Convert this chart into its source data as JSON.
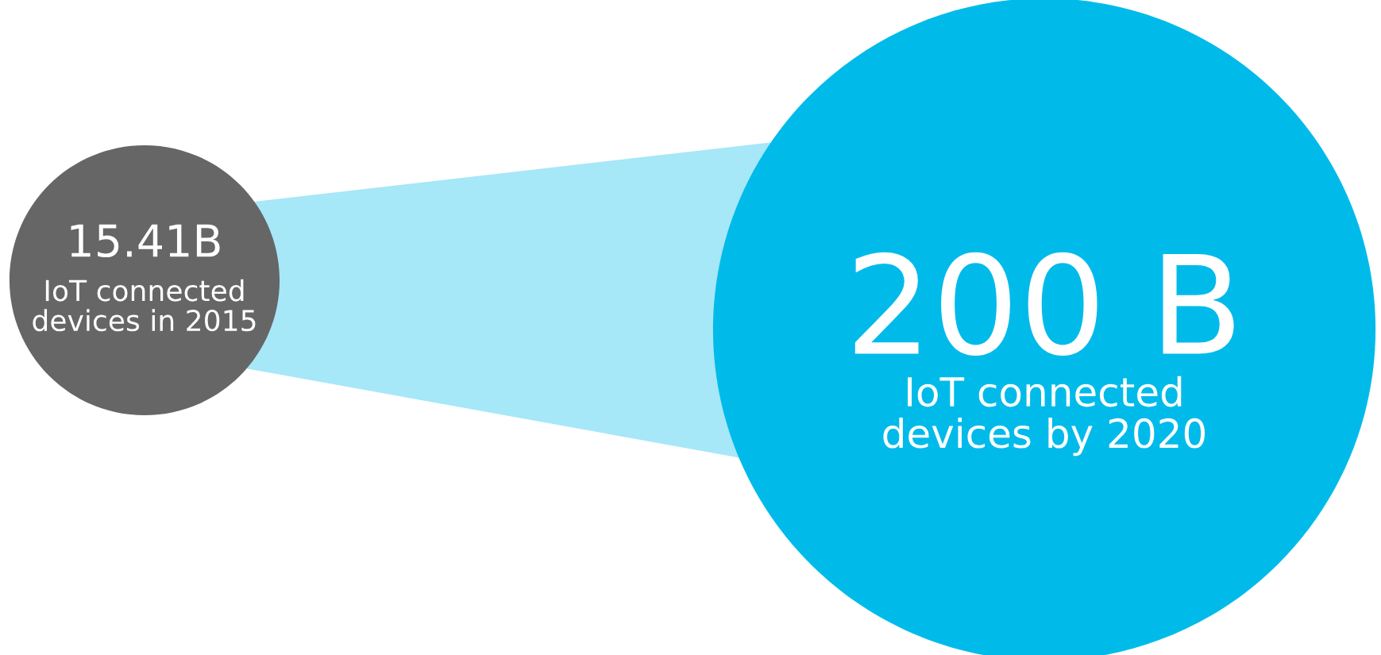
{
  "chart_data": {
    "type": "other",
    "categories": [
      "IoT connected\ndevices in 2015",
      "IoT connected\ndevices by 2020"
    ],
    "values": [
      15.41,
      200
    ],
    "value_labels": [
      "15.41B",
      "200 B"
    ],
    "colors": [
      "#666666",
      "#00bbea"
    ]
  }
}
